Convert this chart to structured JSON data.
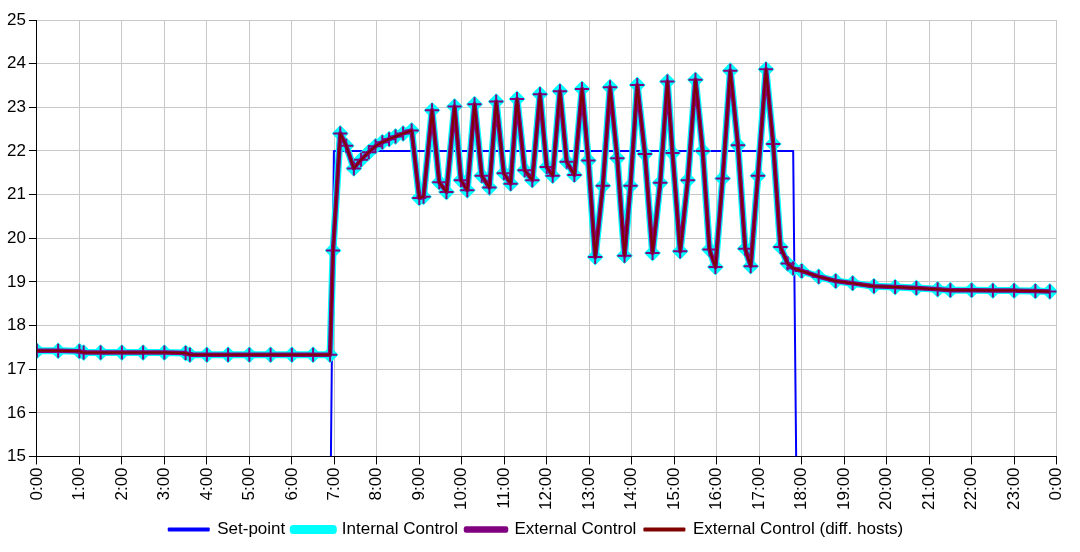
{
  "chart_data": {
    "type": "line",
    "x": [
      0,
      0.5,
      1.0,
      1.1,
      1.5,
      2,
      2.5,
      3,
      3.5,
      3.6,
      4,
      4.5,
      5,
      5.5,
      6,
      6.5,
      6.9,
      6.97,
      7.14,
      7.28,
      7.46,
      7.63,
      7.81,
      7.97,
      8.13,
      8.29,
      8.44,
      8.62,
      8.82,
      9.0,
      9.1,
      9.3,
      9.47,
      9.64,
      9.83,
      9.98,
      10.13,
      10.3,
      10.47,
      10.65,
      10.81,
      10.99,
      11.15,
      11.3,
      11.48,
      11.66,
      11.84,
      12.0,
      12.14,
      12.31,
      12.47,
      12.65,
      12.83,
      12.98,
      13.14,
      13.32,
      13.49,
      13.66,
      13.83,
      13.97,
      14.13,
      14.31,
      14.49,
      14.67,
      14.84,
      14.96,
      15.14,
      15.32,
      15.5,
      15.67,
      15.83,
      15.97,
      16.14,
      16.32,
      16.5,
      16.67,
      16.8,
      16.97,
      17.16,
      17.33,
      17.5,
      17.67,
      17.8,
      18.0,
      18.4,
      18.8,
      19.2,
      19.7,
      20.2,
      20.7,
      21.2,
      21.5,
      22,
      22.5,
      23,
      23.5,
      23.84
    ],
    "series": [
      {
        "name": "Set-point",
        "color": "#0000ff",
        "marker": "none",
        "x": [
          6.92,
          6.99,
          17.8,
          17.87
        ],
        "values": [
          15,
          22,
          22,
          15
        ]
      },
      {
        "name": "Internal Control",
        "color": "#00ffff",
        "marker": "diamond",
        "values": [
          17.42,
          17.42,
          17.41,
          17.38,
          17.38,
          17.38,
          17.38,
          17.38,
          17.37,
          17.33,
          17.33,
          17.33,
          17.33,
          17.33,
          17.33,
          17.33,
          17.33,
          19.72,
          22.4,
          22.12,
          21.6,
          21.8,
          21.97,
          22.11,
          22.2,
          22.27,
          22.33,
          22.4,
          22.47,
          20.92,
          20.95,
          22.93,
          21.28,
          21.06,
          23.02,
          21.33,
          21.1,
          23.07,
          21.43,
          21.16,
          23.13,
          21.49,
          21.25,
          23.19,
          21.56,
          21.33,
          23.3,
          21.63,
          21.43,
          23.37,
          21.75,
          21.45,
          23.42,
          21.78,
          19.57,
          21.2,
          23.46,
          21.83,
          19.6,
          21.2,
          23.51,
          21.93,
          19.66,
          21.27,
          23.59,
          21.95,
          19.7,
          21.33,
          23.63,
          22.0,
          19.74,
          19.34,
          21.37,
          23.84,
          22.13,
          19.76,
          19.36,
          21.43,
          23.87,
          22.16,
          19.8,
          19.42,
          19.31,
          19.25,
          19.12,
          19.02,
          18.97,
          18.9,
          18.88,
          18.86,
          18.83,
          18.81,
          18.81,
          18.8,
          18.8,
          18.79,
          18.78
        ]
      },
      {
        "name": "External Control",
        "color": "#800080",
        "marker": "cross",
        "values": [
          17.42,
          17.42,
          17.41,
          17.38,
          17.38,
          17.38,
          17.38,
          17.38,
          17.37,
          17.33,
          17.33,
          17.33,
          17.33,
          17.33,
          17.33,
          17.33,
          17.33,
          19.72,
          22.4,
          22.12,
          21.6,
          21.8,
          21.97,
          22.11,
          22.2,
          22.27,
          22.33,
          22.4,
          22.47,
          20.92,
          20.95,
          22.93,
          21.28,
          21.06,
          23.02,
          21.33,
          21.1,
          23.07,
          21.43,
          21.16,
          23.13,
          21.49,
          21.25,
          23.19,
          21.56,
          21.33,
          23.3,
          21.63,
          21.43,
          23.37,
          21.75,
          21.45,
          23.42,
          21.78,
          19.57,
          21.2,
          23.46,
          21.83,
          19.6,
          21.2,
          23.51,
          21.93,
          19.66,
          21.27,
          23.59,
          21.95,
          19.7,
          21.33,
          23.63,
          22.0,
          19.74,
          19.34,
          21.37,
          23.84,
          22.13,
          19.76,
          19.36,
          21.43,
          23.87,
          22.16,
          19.8,
          19.42,
          19.31,
          19.25,
          19.12,
          19.02,
          18.97,
          18.9,
          18.88,
          18.86,
          18.83,
          18.81,
          18.81,
          18.8,
          18.8,
          18.79,
          18.78
        ]
      },
      {
        "name": "External Control (diff. hosts)",
        "color": "#800000",
        "marker": "none",
        "values": [
          17.42,
          17.42,
          17.41,
          17.38,
          17.38,
          17.38,
          17.38,
          17.38,
          17.37,
          17.33,
          17.33,
          17.33,
          17.33,
          17.33,
          17.33,
          17.33,
          17.33,
          19.72,
          22.4,
          22.12,
          21.6,
          21.8,
          21.97,
          22.11,
          22.2,
          22.27,
          22.33,
          22.4,
          22.47,
          20.92,
          20.95,
          22.93,
          21.28,
          21.06,
          23.02,
          21.33,
          21.1,
          23.07,
          21.43,
          21.16,
          23.13,
          21.49,
          21.25,
          23.19,
          21.56,
          21.33,
          23.3,
          21.63,
          21.43,
          23.37,
          21.75,
          21.45,
          23.42,
          21.78,
          19.57,
          21.2,
          23.46,
          21.83,
          19.6,
          21.2,
          23.51,
          21.93,
          19.66,
          21.27,
          23.59,
          21.95,
          19.7,
          21.33,
          23.63,
          22.0,
          19.74,
          19.34,
          21.37,
          23.84,
          22.13,
          19.76,
          19.36,
          21.43,
          23.87,
          22.16,
          19.8,
          19.42,
          19.31,
          19.25,
          19.12,
          19.02,
          18.97,
          18.9,
          18.88,
          18.86,
          18.83,
          18.81,
          18.81,
          18.8,
          18.8,
          18.79,
          18.78
        ]
      }
    ],
    "xlim": [
      0,
      24
    ],
    "xticks": [
      {
        "value": 0,
        "label": "0:00"
      },
      {
        "value": 1,
        "label": "1:00"
      },
      {
        "value": 2,
        "label": "2:00"
      },
      {
        "value": 3,
        "label": "3:00"
      },
      {
        "value": 4,
        "label": "4:00"
      },
      {
        "value": 5,
        "label": "5:00"
      },
      {
        "value": 6,
        "label": "6:00"
      },
      {
        "value": 7,
        "label": "7:00"
      },
      {
        "value": 8,
        "label": "8:00"
      },
      {
        "value": 9,
        "label": "9:00"
      },
      {
        "value": 10,
        "label": "10:00"
      },
      {
        "value": 11,
        "label": "11:00"
      },
      {
        "value": 12,
        "label": "12:00"
      },
      {
        "value": 13,
        "label": "13:00"
      },
      {
        "value": 14,
        "label": "14:00"
      },
      {
        "value": 15,
        "label": "15:00"
      },
      {
        "value": 16,
        "label": "16:00"
      },
      {
        "value": 17,
        "label": "17:00"
      },
      {
        "value": 18,
        "label": "18:00"
      },
      {
        "value": 19,
        "label": "19:00"
      },
      {
        "value": 20,
        "label": "20:00"
      },
      {
        "value": 21,
        "label": "21:00"
      },
      {
        "value": 22,
        "label": "22:00"
      },
      {
        "value": 23,
        "label": "23:00"
      },
      {
        "value": 24,
        "label": "0:00"
      }
    ],
    "ylim": [
      15,
      25
    ],
    "yticks": [
      15,
      16,
      17,
      18,
      19,
      20,
      21,
      22,
      23,
      24,
      25
    ],
    "grid": true,
    "legend": "bottom"
  }
}
